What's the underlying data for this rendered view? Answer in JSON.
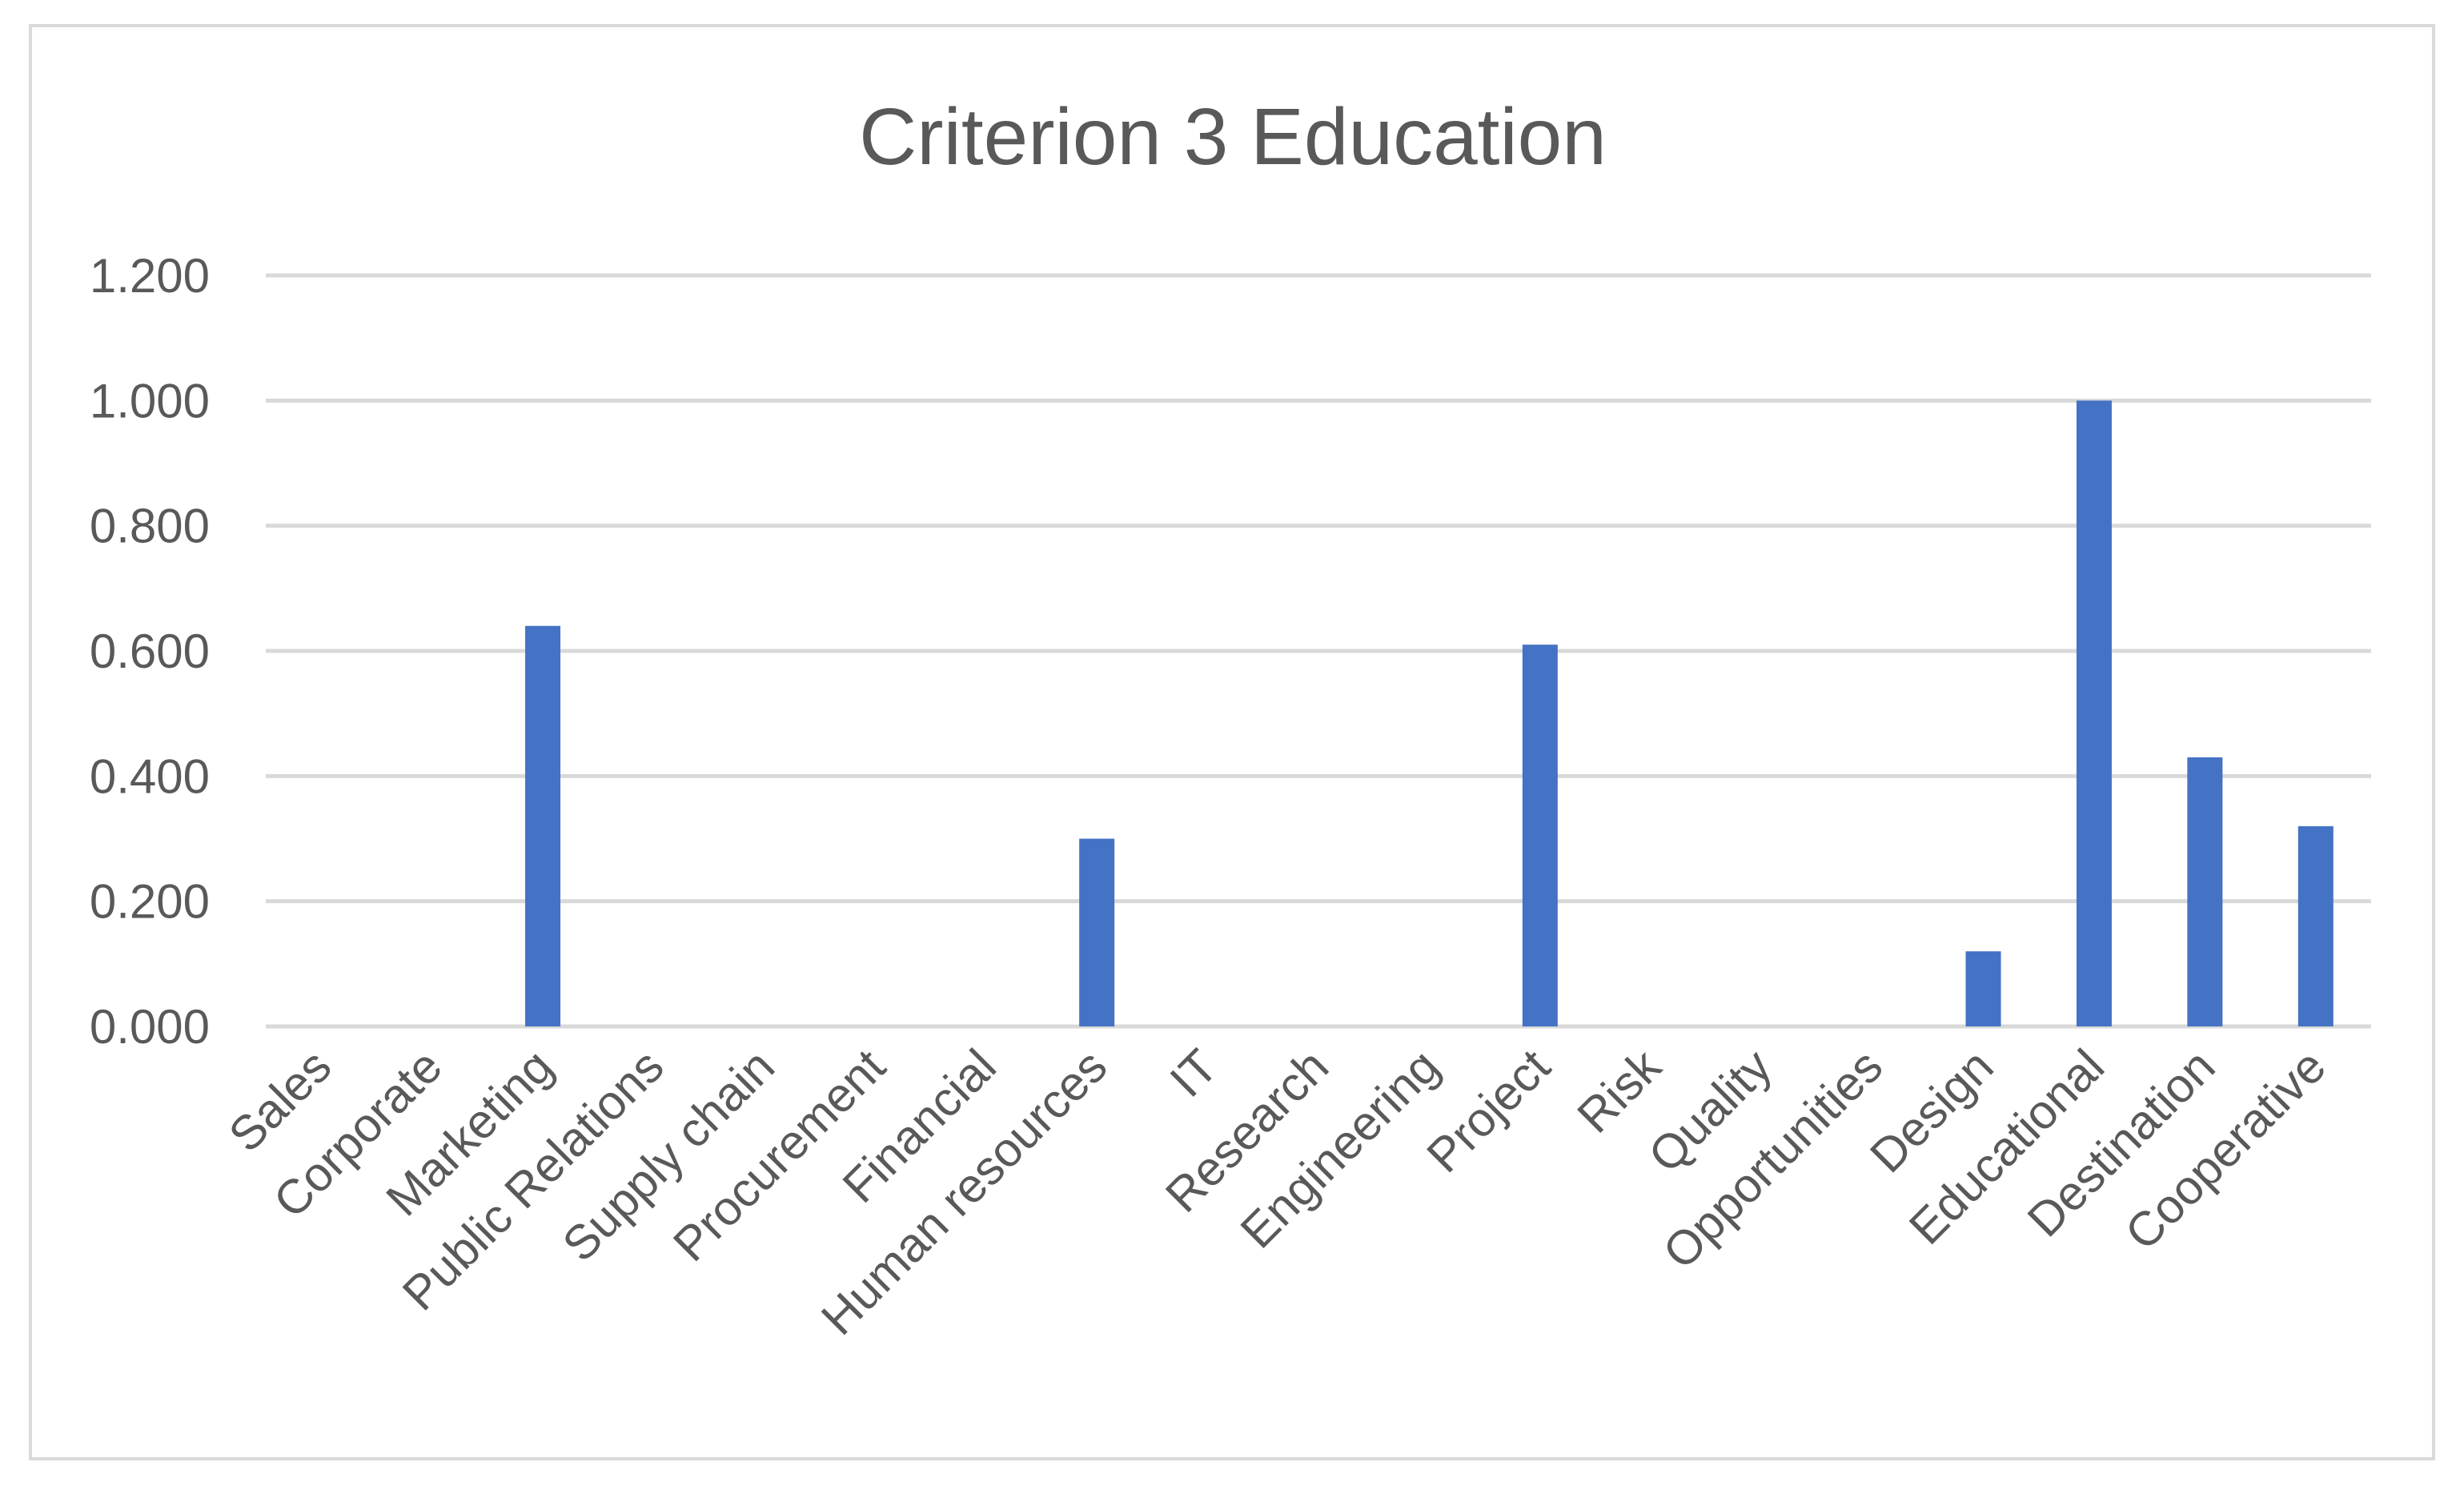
{
  "chart_data": {
    "type": "bar",
    "title": "Criterion 3 Education",
    "xlabel": "",
    "ylabel": "",
    "categories": [
      "Sales",
      "Corporate",
      "Marketing",
      "Public Relations",
      "Supply chain",
      "Procurement",
      "Financial",
      "Human resources",
      "IT",
      "Research",
      "Engineering",
      "Project",
      "Risk",
      "Quality",
      "Opportunities",
      "Design",
      "Educational",
      "Destination",
      "Cooperative"
    ],
    "values": [
      0,
      0,
      0.64,
      0,
      0,
      0,
      0,
      0.3,
      0,
      0,
      0,
      0.61,
      0,
      0,
      0,
      0.12,
      1.0,
      0.43,
      0.32
    ],
    "ylim": [
      0,
      1.2
    ],
    "yticks": [
      "0.000",
      "0.200",
      "0.400",
      "0.600",
      "0.800",
      "1.000",
      "1.200"
    ],
    "grid": true,
    "legend": "none",
    "bar_color": "#4472c4"
  }
}
